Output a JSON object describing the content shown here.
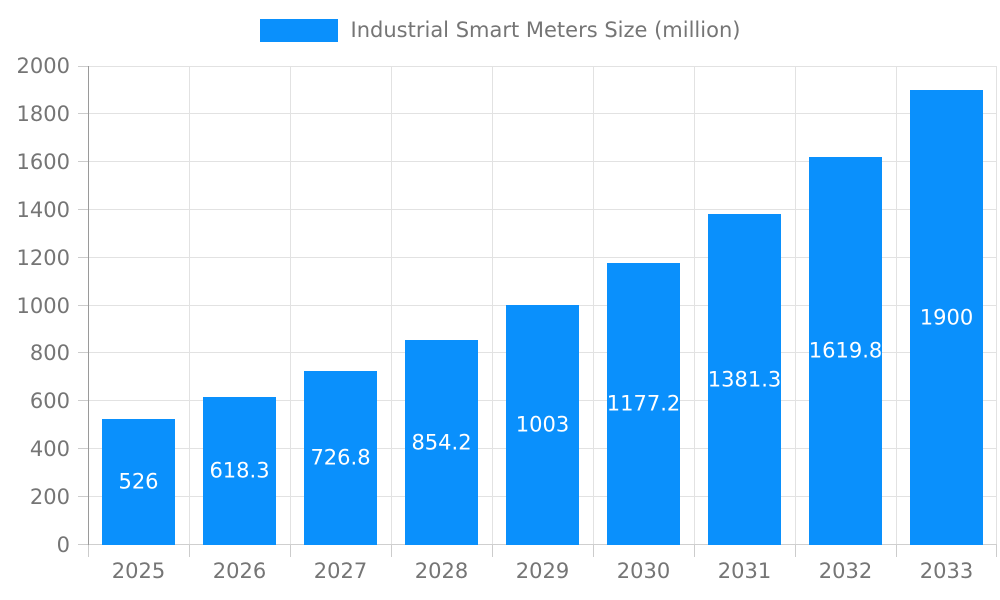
{
  "legend": {
    "label": "Industrial Smart Meters Size (million)"
  },
  "colors": {
    "bar": "#0a90fc",
    "grid": "#e2e2e2",
    "y_axis_line": "#9a9a9a",
    "x_axis_line": "#cfcfcf",
    "tick_mark": "#cccccc",
    "tick_text": "#757575",
    "bar_label_text": "#ffffff",
    "background": "#ffffff"
  },
  "chart_data": {
    "type": "bar",
    "title": "Industrial Smart Meters Size (million)",
    "xlabel": "",
    "ylabel": "",
    "categories": [
      "2025",
      "2026",
      "2027",
      "2028",
      "2029",
      "2030",
      "2031",
      "2032",
      "2033"
    ],
    "values": [
      526,
      618.3,
      726.8,
      854.2,
      1003,
      1177.2,
      1381.3,
      1619.8,
      1900
    ],
    "bar_value_labels": [
      "526",
      "618.3",
      "726.8",
      "854.2",
      "1003",
      "1177.2",
      "1381.3",
      "1619.8",
      "1900"
    ],
    "ylim": [
      0,
      2000
    ],
    "ytick_interval": 200,
    "yticks": [
      0,
      200,
      400,
      600,
      800,
      1000,
      1200,
      1400,
      1600,
      1800,
      2000
    ],
    "grid": true,
    "legend_position": "top-center",
    "legend_entries": [
      "Industrial Smart Meters Size (million)"
    ],
    "bar_labels_visible": true
  }
}
